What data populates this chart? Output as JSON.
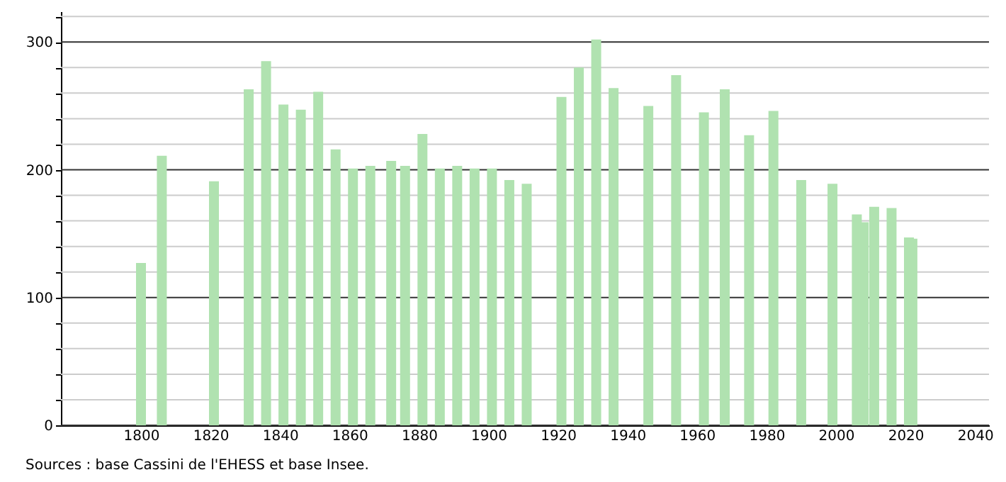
{
  "chart_data": {
    "type": "bar",
    "x": [
      1800,
      1806,
      1821,
      1831,
      1836,
      1841,
      1846,
      1851,
      1856,
      1861,
      1866,
      1872,
      1876,
      1881,
      1886,
      1891,
      1896,
      1901,
      1906,
      1911,
      1921,
      1926,
      1931,
      1936,
      1946,
      1954,
      1962,
      1968,
      1975,
      1982,
      1990,
      1999,
      2006,
      2008,
      2011,
      2016,
      2021,
      2022
    ],
    "values": [
      127,
      211,
      191,
      263,
      285,
      251,
      247,
      261,
      216,
      201,
      203,
      207,
      203,
      228,
      201,
      203,
      201,
      201,
      192,
      189,
      257,
      280,
      302,
      264,
      250,
      274,
      245,
      263,
      227,
      246,
      192,
      189,
      165,
      159,
      171,
      170,
      147,
      146
    ],
    "color": "#b0e2b0",
    "xlim": [
      1779,
      2042
    ],
    "xticks": [
      1800,
      1820,
      1840,
      1860,
      1880,
      1900,
      1920,
      1940,
      1960,
      1980,
      2000,
      2020,
      2040
    ],
    "ylim": [
      0,
      324
    ],
    "yticks": [
      0,
      {
        "value": 20,
        "label": null
      },
      {
        "value": 40,
        "label": null
      },
      {
        "value": 60,
        "label": null
      },
      {
        "value": 80,
        "label": null
      },
      100,
      {
        "value": 120,
        "label": null
      },
      {
        "value": 140,
        "label": null
      },
      {
        "value": 160,
        "label": null
      },
      {
        "value": 180,
        "label": null
      },
      200,
      {
        "value": 220,
        "label": null
      },
      {
        "value": 240,
        "label": null
      },
      {
        "value": 260,
        "label": null
      },
      {
        "value": 280,
        "label": null
      },
      300,
      {
        "value": 320,
        "label": null
      }
    ],
    "grid": "y",
    "annotations": [
      "Sources : base Cassini de l'EHESS et base Insee."
    ]
  }
}
